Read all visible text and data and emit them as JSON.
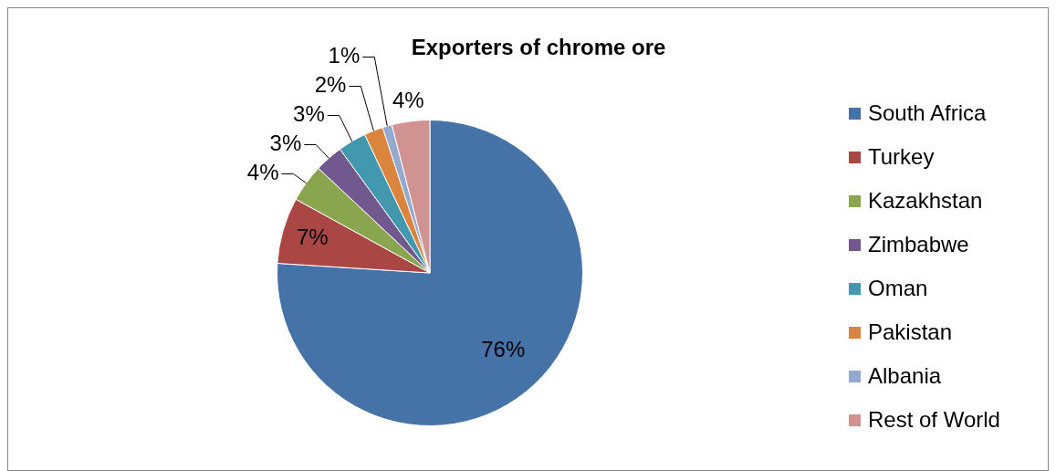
{
  "chart_data": {
    "type": "pie",
    "title": "Exporters of chrome ore",
    "categories": [
      "South Africa",
      "Turkey",
      "Kazakhstan",
      "Zimbabwe",
      "Oman",
      "Pakistan",
      "Albania",
      "Rest of World"
    ],
    "values": [
      76,
      7,
      4,
      3,
      3,
      2,
      1,
      4
    ],
    "colors": [
      "#4572a7",
      "#aa4643",
      "#89a54e",
      "#71588f",
      "#4198af",
      "#db843d",
      "#93a9cf",
      "#d19392"
    ],
    "value_labels": [
      "76%",
      "7%",
      "4%",
      "3%",
      "3%",
      "2%",
      "1%",
      "4%"
    ],
    "legend": "right"
  }
}
